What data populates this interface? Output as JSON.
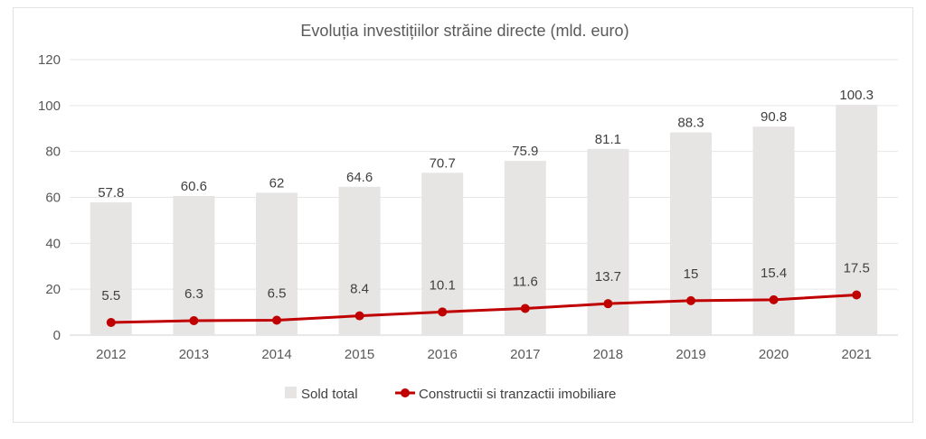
{
  "chart_data": {
    "type": "bar",
    "title": "Evoluția investițiilor străine directe (mld. euro)",
    "xlabel": "",
    "ylabel": "",
    "ylim": [
      0,
      120
    ],
    "yticks": [
      0,
      20,
      40,
      60,
      80,
      100,
      120
    ],
    "grid": true,
    "legend_position": "bottom",
    "categories": [
      "2012",
      "2013",
      "2014",
      "2015",
      "2016",
      "2017",
      "2018",
      "2019",
      "2020",
      "2021"
    ],
    "series": [
      {
        "name": "Sold total",
        "type": "bar",
        "color": "#e7e4e4",
        "values": [
          57.8,
          60.6,
          62,
          64.6,
          70.7,
          75.9,
          81.1,
          88.3,
          90.8,
          100.3
        ],
        "labels": [
          "57.8",
          "60.6",
          "62",
          "64.6",
          "70.7",
          "75.9",
          "81.1",
          "88.3",
          "90.8",
          "100.3"
        ]
      },
      {
        "name": "Constructii si tranzactii imobiliare",
        "type": "line",
        "color": "#c00000",
        "values": [
          5.5,
          6.3,
          6.5,
          8.4,
          10.1,
          11.6,
          13.7,
          15,
          15.4,
          17.5
        ],
        "labels": [
          "5.5",
          "6.3",
          "6.5",
          "8.4",
          "10.1",
          "11.6",
          "13.7",
          "15",
          "15.4",
          "17.5"
        ]
      }
    ]
  }
}
